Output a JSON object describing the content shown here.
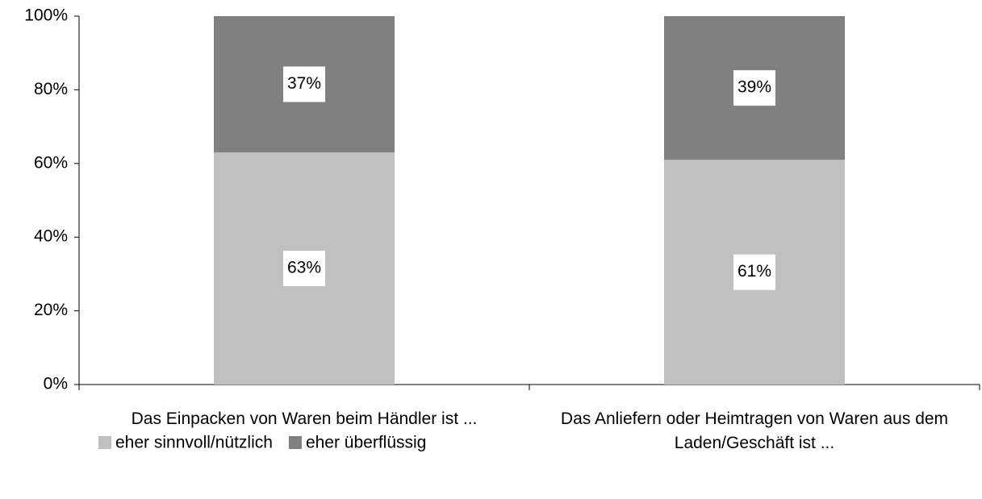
{
  "chart_data": {
    "type": "stacked_bar",
    "categories": [
      "Das Einpacken von Waren beim Händler ist ...",
      "Das Anliefern oder Heimtragen von Waren aus dem Laden/Geschäft ist ..."
    ],
    "series": [
      {
        "name": "eher sinnvoll/nützlich",
        "color": "#c0c0c0",
        "values": [
          63,
          61
        ],
        "value_labels": [
          "63%",
          "61%"
        ]
      },
      {
        "name": "eher überflüssig",
        "color": "#808080",
        "values": [
          37,
          39
        ],
        "value_labels": [
          "37%",
          "39%"
        ]
      }
    ],
    "ylim": [
      0,
      100
    ],
    "yticks": [
      {
        "value": 0,
        "label": "0%"
      },
      {
        "value": 20,
        "label": "20%"
      },
      {
        "value": 40,
        "label": "40%"
      },
      {
        "value": 60,
        "label": "60%"
      },
      {
        "value": 80,
        "label": "80%"
      },
      {
        "value": 100,
        "label": "100%"
      }
    ],
    "legend": "bottom-left"
  }
}
